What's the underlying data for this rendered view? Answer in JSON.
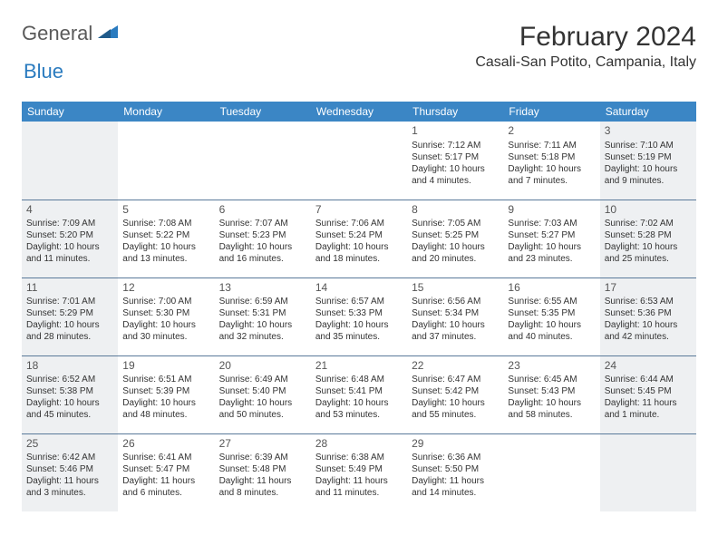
{
  "logo": {
    "part1": "General",
    "part2": "Blue",
    "color1": "#5a5a5a",
    "color2": "#2a7bbf"
  },
  "title": "February 2024",
  "location": "Casali-San Potito, Campania, Italy",
  "colors": {
    "header_bg": "#3b86c5",
    "header_text": "#ffffff",
    "weekend_bg": "#eef0f2",
    "cell_border": "#5a7a9a",
    "text": "#333333",
    "daynum": "#555555"
  },
  "weekdays": [
    "Sunday",
    "Monday",
    "Tuesday",
    "Wednesday",
    "Thursday",
    "Friday",
    "Saturday"
  ],
  "weeks": [
    [
      null,
      null,
      null,
      null,
      {
        "d": "1",
        "sr": "7:12 AM",
        "ss": "5:17 PM",
        "dl": "10 hours and 4 minutes."
      },
      {
        "d": "2",
        "sr": "7:11 AM",
        "ss": "5:18 PM",
        "dl": "10 hours and 7 minutes."
      },
      {
        "d": "3",
        "sr": "7:10 AM",
        "ss": "5:19 PM",
        "dl": "10 hours and 9 minutes."
      }
    ],
    [
      {
        "d": "4",
        "sr": "7:09 AM",
        "ss": "5:20 PM",
        "dl": "10 hours and 11 minutes."
      },
      {
        "d": "5",
        "sr": "7:08 AM",
        "ss": "5:22 PM",
        "dl": "10 hours and 13 minutes."
      },
      {
        "d": "6",
        "sr": "7:07 AM",
        "ss": "5:23 PM",
        "dl": "10 hours and 16 minutes."
      },
      {
        "d": "7",
        "sr": "7:06 AM",
        "ss": "5:24 PM",
        "dl": "10 hours and 18 minutes."
      },
      {
        "d": "8",
        "sr": "7:05 AM",
        "ss": "5:25 PM",
        "dl": "10 hours and 20 minutes."
      },
      {
        "d": "9",
        "sr": "7:03 AM",
        "ss": "5:27 PM",
        "dl": "10 hours and 23 minutes."
      },
      {
        "d": "10",
        "sr": "7:02 AM",
        "ss": "5:28 PM",
        "dl": "10 hours and 25 minutes."
      }
    ],
    [
      {
        "d": "11",
        "sr": "7:01 AM",
        "ss": "5:29 PM",
        "dl": "10 hours and 28 minutes."
      },
      {
        "d": "12",
        "sr": "7:00 AM",
        "ss": "5:30 PM",
        "dl": "10 hours and 30 minutes."
      },
      {
        "d": "13",
        "sr": "6:59 AM",
        "ss": "5:31 PM",
        "dl": "10 hours and 32 minutes."
      },
      {
        "d": "14",
        "sr": "6:57 AM",
        "ss": "5:33 PM",
        "dl": "10 hours and 35 minutes."
      },
      {
        "d": "15",
        "sr": "6:56 AM",
        "ss": "5:34 PM",
        "dl": "10 hours and 37 minutes."
      },
      {
        "d": "16",
        "sr": "6:55 AM",
        "ss": "5:35 PM",
        "dl": "10 hours and 40 minutes."
      },
      {
        "d": "17",
        "sr": "6:53 AM",
        "ss": "5:36 PM",
        "dl": "10 hours and 42 minutes."
      }
    ],
    [
      {
        "d": "18",
        "sr": "6:52 AM",
        "ss": "5:38 PM",
        "dl": "10 hours and 45 minutes."
      },
      {
        "d": "19",
        "sr": "6:51 AM",
        "ss": "5:39 PM",
        "dl": "10 hours and 48 minutes."
      },
      {
        "d": "20",
        "sr": "6:49 AM",
        "ss": "5:40 PM",
        "dl": "10 hours and 50 minutes."
      },
      {
        "d": "21",
        "sr": "6:48 AM",
        "ss": "5:41 PM",
        "dl": "10 hours and 53 minutes."
      },
      {
        "d": "22",
        "sr": "6:47 AM",
        "ss": "5:42 PM",
        "dl": "10 hours and 55 minutes."
      },
      {
        "d": "23",
        "sr": "6:45 AM",
        "ss": "5:43 PM",
        "dl": "10 hours and 58 minutes."
      },
      {
        "d": "24",
        "sr": "6:44 AM",
        "ss": "5:45 PM",
        "dl": "11 hours and 1 minute."
      }
    ],
    [
      {
        "d": "25",
        "sr": "6:42 AM",
        "ss": "5:46 PM",
        "dl": "11 hours and 3 minutes."
      },
      {
        "d": "26",
        "sr": "6:41 AM",
        "ss": "5:47 PM",
        "dl": "11 hours and 6 minutes."
      },
      {
        "d": "27",
        "sr": "6:39 AM",
        "ss": "5:48 PM",
        "dl": "11 hours and 8 minutes."
      },
      {
        "d": "28",
        "sr": "6:38 AM",
        "ss": "5:49 PM",
        "dl": "11 hours and 11 minutes."
      },
      {
        "d": "29",
        "sr": "6:36 AM",
        "ss": "5:50 PM",
        "dl": "11 hours and 14 minutes."
      },
      null,
      null
    ]
  ]
}
